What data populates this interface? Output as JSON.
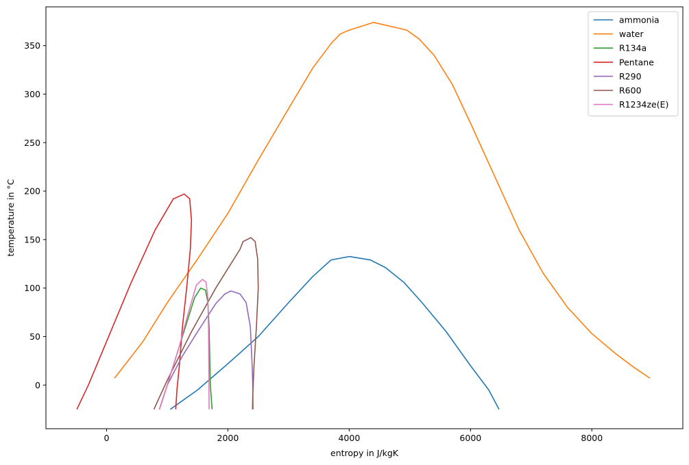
{
  "chart_data": {
    "type": "line",
    "title": "",
    "xlabel": "entropy in J/kgK",
    "ylabel": "temperature in °C",
    "xlim": [
      -1000,
      9500
    ],
    "ylim": [
      -45,
      390
    ],
    "xticks": [
      0,
      2000,
      4000,
      6000,
      8000
    ],
    "yticks": [
      0,
      50,
      100,
      150,
      200,
      250,
      300,
      350
    ],
    "grid": false,
    "legend_position": "top-right",
    "series": [
      {
        "name": "ammonia",
        "color": "#1f77b4",
        "points": [
          [
            1050,
            -25
          ],
          [
            1500,
            -5
          ],
          [
            2000,
            22
          ],
          [
            2500,
            50
          ],
          [
            3000,
            85
          ],
          [
            3400,
            112
          ],
          [
            3700,
            129
          ],
          [
            4000,
            132.5
          ],
          [
            4350,
            129
          ],
          [
            4600,
            121
          ],
          [
            4900,
            106
          ],
          [
            5200,
            85
          ],
          [
            5600,
            55
          ],
          [
            6000,
            20
          ],
          [
            6300,
            -5
          ],
          [
            6470,
            -25
          ]
        ]
      },
      {
        "name": "water",
        "color": "#ff7f0e",
        "points": [
          [
            130,
            7
          ],
          [
            600,
            45
          ],
          [
            1000,
            85
          ],
          [
            1500,
            130
          ],
          [
            2000,
            177
          ],
          [
            2500,
            232
          ],
          [
            3000,
            285
          ],
          [
            3400,
            327
          ],
          [
            3700,
            352
          ],
          [
            3850,
            362
          ],
          [
            4000,
            366
          ],
          [
            4400,
            374
          ],
          [
            4950,
            366
          ],
          [
            5150,
            357
          ],
          [
            5400,
            340
          ],
          [
            5700,
            310
          ],
          [
            6000,
            270
          ],
          [
            6400,
            215
          ],
          [
            6800,
            160
          ],
          [
            7200,
            115
          ],
          [
            7600,
            80
          ],
          [
            8000,
            53
          ],
          [
            8400,
            32
          ],
          [
            8700,
            18
          ],
          [
            8960,
            7
          ]
        ]
      },
      {
        "name": "R134a",
        "color": "#2ca02c",
        "points": [
          [
            870,
            -25
          ],
          [
            1000,
            0
          ],
          [
            1150,
            30
          ],
          [
            1300,
            60
          ],
          [
            1450,
            90
          ],
          [
            1550,
            100
          ],
          [
            1630,
            98
          ],
          [
            1670,
            85
          ],
          [
            1690,
            60
          ],
          [
            1700,
            30
          ],
          [
            1710,
            0
          ],
          [
            1740,
            -25
          ]
        ]
      },
      {
        "name": "Pentane",
        "color": "#d62728",
        "points": [
          [
            -490,
            -25
          ],
          [
            -300,
            0
          ],
          [
            0,
            45
          ],
          [
            400,
            105
          ],
          [
            800,
            160
          ],
          [
            1100,
            192
          ],
          [
            1280,
            197
          ],
          [
            1370,
            192
          ],
          [
            1400,
            170
          ],
          [
            1380,
            140
          ],
          [
            1320,
            100
          ],
          [
            1250,
            60
          ],
          [
            1200,
            20
          ],
          [
            1160,
            -5
          ],
          [
            1140,
            -25
          ]
        ]
      },
      {
        "name": "R290",
        "color": "#9467bd",
        "points": [
          [
            870,
            -25
          ],
          [
            1000,
            0
          ],
          [
            1250,
            30
          ],
          [
            1500,
            55
          ],
          [
            1800,
            84
          ],
          [
            1950,
            94
          ],
          [
            2050,
            97
          ],
          [
            2200,
            94
          ],
          [
            2300,
            85
          ],
          [
            2370,
            60
          ],
          [
            2400,
            20
          ],
          [
            2410,
            0
          ],
          [
            2415,
            -25
          ]
        ]
      },
      {
        "name": "R600",
        "color": "#8c564b",
        "points": [
          [
            780,
            -25
          ],
          [
            1000,
            5
          ],
          [
            1400,
            55
          ],
          [
            1800,
            100
          ],
          [
            2000,
            120
          ],
          [
            2200,
            140
          ],
          [
            2250,
            148
          ],
          [
            2380,
            152
          ],
          [
            2450,
            148
          ],
          [
            2490,
            130
          ],
          [
            2500,
            100
          ],
          [
            2470,
            60
          ],
          [
            2430,
            20
          ],
          [
            2410,
            -10
          ],
          [
            2405,
            -25
          ]
        ]
      },
      {
        "name": "R1234ze(E)",
        "color": "#e377c2",
        "points": [
          [
            870,
            -25
          ],
          [
            1000,
            0
          ],
          [
            1200,
            40
          ],
          [
            1350,
            75
          ],
          [
            1480,
            103
          ],
          [
            1580,
            109
          ],
          [
            1640,
            106
          ],
          [
            1670,
            90
          ],
          [
            1680,
            60
          ],
          [
            1685,
            20
          ],
          [
            1690,
            -25
          ]
        ]
      }
    ]
  }
}
